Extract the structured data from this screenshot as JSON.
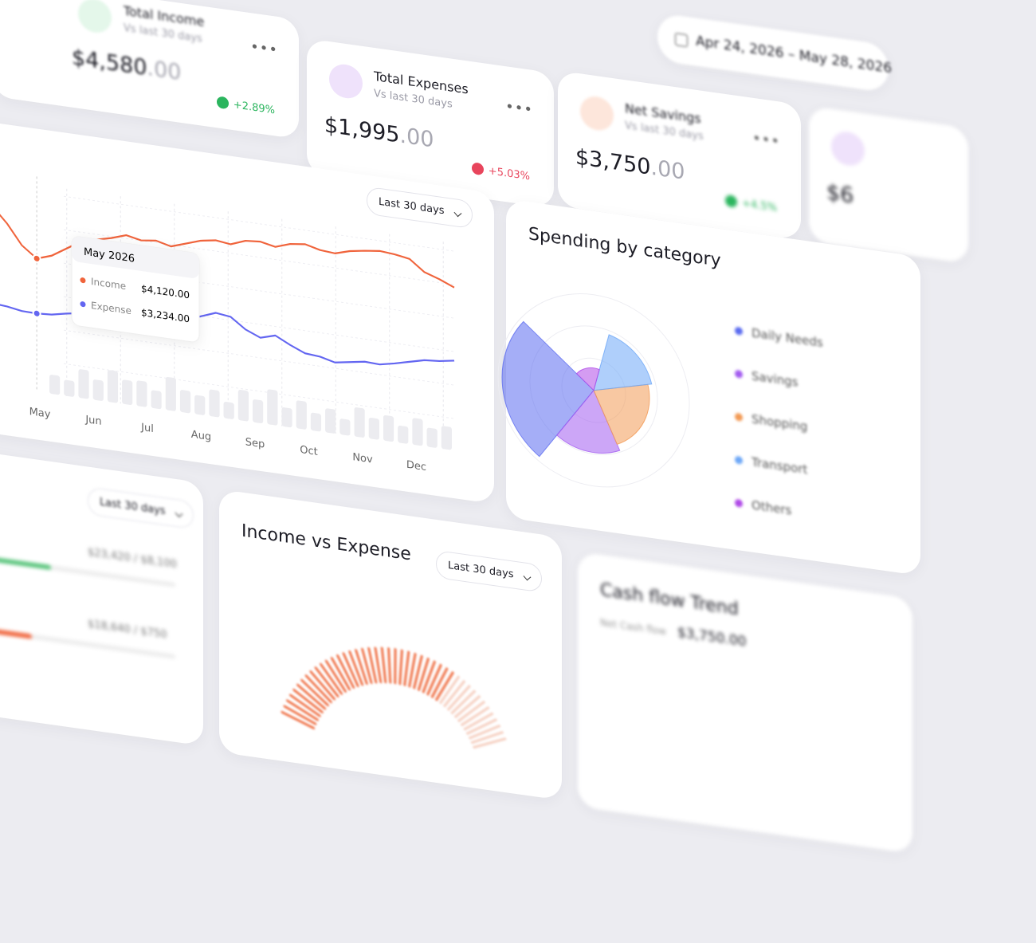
{
  "date_range": "Apr 24, 2026 – May 28, 2026",
  "stat_cards": [
    {
      "title": "Total Income",
      "subtitle": "Vs last 30 days",
      "amount": "$4,580",
      "cents": ".00",
      "change": "+2.89%"
    },
    {
      "title": "Total Expenses",
      "subtitle": "Vs last 30 days",
      "amount": "$1,995",
      "cents": ".00",
      "change": "+5.03%"
    },
    {
      "title": "Net Savings",
      "subtitle": "Vs last 30 days",
      "amount": "$3,750",
      "cents": ".00",
      "change": "+4.5%"
    },
    {
      "amount": "$6"
    }
  ],
  "trend_chart": {
    "type": "line",
    "dropdown": "Last 30 days",
    "categories": [
      "May",
      "Jun",
      "Jul",
      "Aug",
      "Sep",
      "Oct",
      "Nov",
      "Dec"
    ],
    "ylim": [
      3000,
      5700
    ],
    "series": [
      {
        "name": "Income",
        "color": "#f0643c",
        "values": [
          4870,
          4620,
          4300,
          4120,
          4200,
          4350,
          4500,
          4560,
          4620,
          4700,
          4650,
          4680,
          4620,
          4700,
          4780,
          4820,
          4790,
          4880,
          4900,
          4850,
          4930,
          4960,
          4900,
          4880,
          4950,
          4990,
          5020,
          5000,
          4960,
          4780,
          4700,
          4600
        ]
      },
      {
        "name": "Expense",
        "color": "#6366f1",
        "values": [
          3300,
          3280,
          3240,
          3234,
          3250,
          3300,
          3340,
          3320,
          3350,
          3380,
          3360,
          3400,
          3420,
          3480,
          3560,
          3650,
          3620,
          3450,
          3350,
          3420,
          3300,
          3200,
          3180,
          3120,
          3160,
          3200,
          3190,
          3240,
          3300,
          3360,
          3380,
          3420
        ]
      }
    ],
    "bars": [
      30,
      25,
      45,
      32,
      50,
      38,
      40,
      28,
      52,
      35,
      30,
      42,
      26,
      48,
      36,
      55,
      30,
      44,
      28,
      38,
      25,
      46,
      33,
      40,
      27,
      42,
      30,
      36
    ],
    "bars_ylim": [
      0,
      100
    ],
    "tooltip": {
      "title": "May 2026",
      "values": [
        "$4,120.00",
        "$3,234.00"
      ]
    }
  },
  "spending": {
    "type": "polar",
    "title": "Spending by category",
    "categories": [
      {
        "name": "Daily Needs",
        "color": "#5b6cf0",
        "share": 26,
        "radius": 115
      },
      {
        "name": "Savings",
        "color": "#a35cf0",
        "share": 17,
        "radius": 78
      },
      {
        "name": "Shopping",
        "color": "#f29a55",
        "share": 22,
        "radius": 70
      },
      {
        "name": "Transport",
        "color": "#6ea8f7",
        "share": 17,
        "radius": 75
      },
      {
        "name": "Others",
        "color": "#b04ae8",
        "share": 18,
        "radius": 28
      }
    ],
    "rlim": [
      0,
      120
    ]
  },
  "left_panel": {
    "dropdown": "Last 30 days",
    "rows": [
      "$23,420 / $8,100",
      "$18,640 / $750"
    ]
  },
  "income_vs_expense": {
    "title": "Income vs Expense",
    "dropdown": "Last 30 days"
  },
  "cash_flow": {
    "title": "Cash flow Trend",
    "label": "Net Cash flow",
    "amount": "$3,750.00"
  }
}
